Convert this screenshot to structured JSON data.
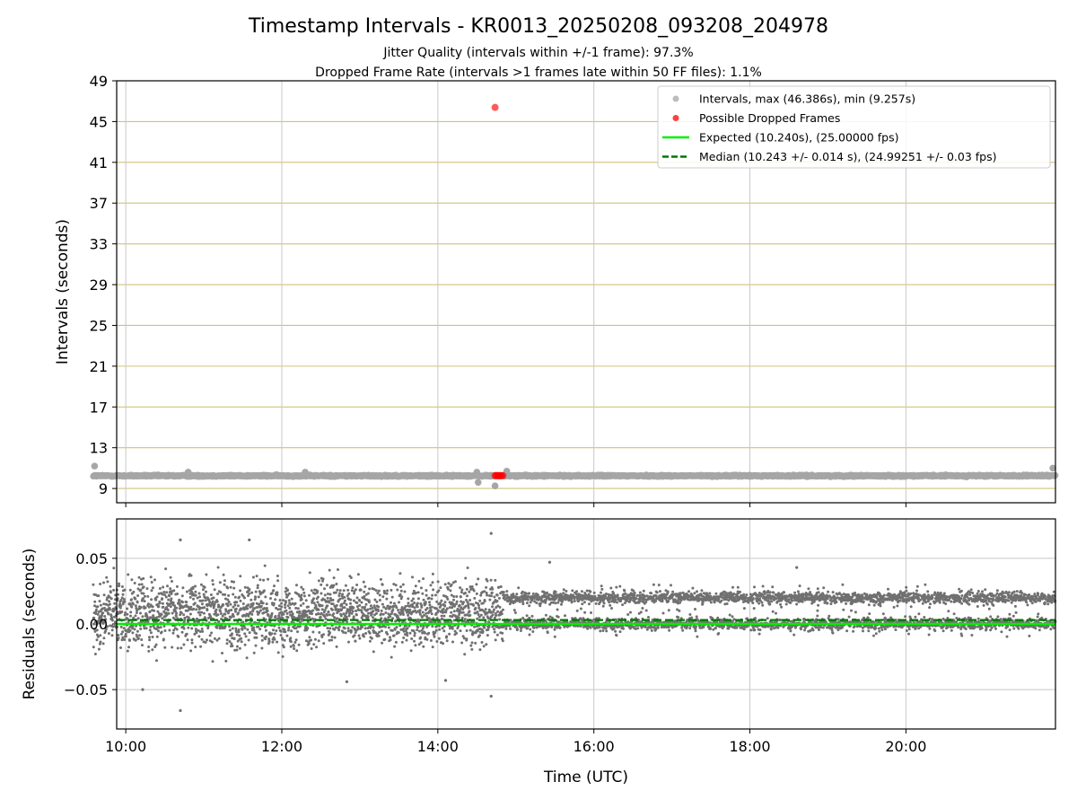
{
  "figure": {
    "title": "Timestamp Intervals - KR0013_20250208_093208_204978",
    "subtitle_1": "Jitter Quality (intervals within +/-1 frame): 97.3%",
    "subtitle_2": "Dropped Frame Rate (intervals >1 frames late within 50 FF files): 1.1%"
  },
  "colors": {
    "intervals": "#a6a6a6",
    "dropped": "#ff0000",
    "expected": "#00ee00",
    "median": "#007700",
    "residuals": "#707070",
    "hgrid_top": "#d4c07a",
    "grid": "#c8c8c8"
  },
  "chart_data": [
    {
      "type": "scatter",
      "panel": "intervals",
      "ylabel": "Intervals (seconds)",
      "xlim": [
        "09:53",
        "21:55"
      ],
      "ylim": [
        7.6,
        49
      ],
      "yticks": [
        9,
        13,
        17,
        21,
        25,
        29,
        33,
        37,
        41,
        45,
        49
      ],
      "xticks": [
        "10:00",
        "12:00",
        "14:00",
        "16:00",
        "18:00",
        "20:00"
      ],
      "grid": "vertical grey, horizontal olive",
      "legend_position": "top-right",
      "legend": [
        {
          "marker": "dot",
          "color": "#a6a6a6",
          "label": "Intervals, max (46.386s), min (9.257s)"
        },
        {
          "marker": "dot",
          "color": "#ff0000",
          "label": "Possible Dropped Frames"
        },
        {
          "marker": "line",
          "color": "#00ee00",
          "label": "Expected (10.240s), (25.00000 fps)"
        },
        {
          "marker": "dashed",
          "color": "#007700",
          "label": "Median (10.243 +/- 0.014 s), (24.99251 +/- 0.03 fps)"
        }
      ],
      "expected_interval": 10.24,
      "median_interval": 10.243,
      "series_range_x": [
        "09:35",
        "21:55"
      ],
      "outliers": [
        {
          "x": "09:36",
          "y": 11.2
        },
        {
          "x": "10:48",
          "y": 10.6
        },
        {
          "x": "12:18",
          "y": 10.6
        },
        {
          "x": "14:30",
          "y": 10.6
        },
        {
          "x": "14:31",
          "y": 9.6
        },
        {
          "x": "14:44",
          "y": 9.26
        },
        {
          "x": "14:53",
          "y": 10.7
        },
        {
          "x": "21:53",
          "y": 11.0
        }
      ],
      "dropped_frames": [
        {
          "x": "14:44",
          "y": 46.386
        },
        {
          "x": "14:44",
          "y": 10.26
        },
        {
          "x": "14:45",
          "y": 10.26
        },
        {
          "x": "14:46",
          "y": 10.26
        },
        {
          "x": "14:47",
          "y": 10.26
        },
        {
          "x": "14:48",
          "y": 10.26
        },
        {
          "x": "14:49",
          "y": 10.26
        },
        {
          "x": "14:50",
          "y": 10.26
        }
      ]
    },
    {
      "type": "scatter",
      "panel": "residuals",
      "xlabel": "Time (UTC)",
      "ylabel": "Residuals (seconds)",
      "xlim": [
        "09:53",
        "21:55"
      ],
      "ylim": [
        -0.08,
        0.08
      ],
      "yticks": [
        "−0.05",
        "0.00",
        "0.05"
      ],
      "yticks_values": [
        -0.05,
        0.0,
        0.05
      ],
      "xticks": [
        "10:00",
        "12:00",
        "14:00",
        "16:00",
        "18:00",
        "20:00"
      ],
      "grid": "both, grey",
      "expected_residual": 0.0,
      "median_residual": 0.003,
      "regimes": [
        {
          "from": "09:35",
          "to": "14:50",
          "center": 0.008,
          "spread": 0.018
        },
        {
          "from": "14:50",
          "to": "21:55",
          "bands": [
            0.0,
            0.02
          ],
          "spread": 0.003
        }
      ],
      "notable_points": [
        {
          "x": "10:42",
          "y": 0.064
        },
        {
          "x": "10:42",
          "y": -0.066
        },
        {
          "x": "11:35",
          "y": 0.064
        },
        {
          "x": "14:41",
          "y": 0.069
        },
        {
          "x": "14:41",
          "y": -0.055
        },
        {
          "x": "10:13",
          "y": -0.05
        },
        {
          "x": "12:50",
          "y": -0.044
        },
        {
          "x": "14:06",
          "y": -0.043
        },
        {
          "x": "15:26",
          "y": 0.047
        },
        {
          "x": "18:36",
          "y": 0.043
        }
      ]
    }
  ]
}
